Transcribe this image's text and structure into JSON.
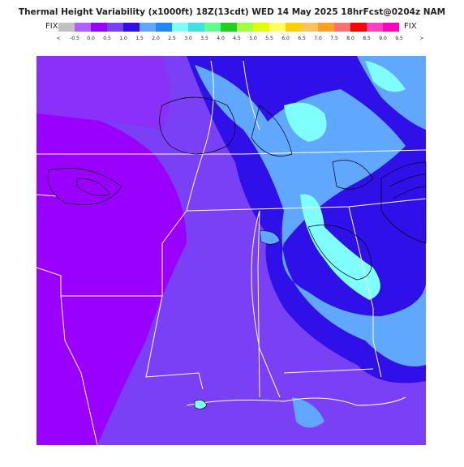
{
  "header": {
    "title": "Thermal Height Variability (x1000ft) 18Z(13cdt) WED 14 May 2025 18hrFcst@0204z NAM",
    "fix_left": "FIX",
    "fix_right": "FIX"
  },
  "legend": {
    "labels": [
      "<",
      "-0.5",
      "0.0",
      "0.5",
      "1.0",
      "1.5",
      "2.0",
      "2.5",
      "3.0",
      "3.5",
      "4.0",
      "4.5",
      "5.0",
      "5.5",
      "6.0",
      "6.5",
      "7.0",
      "7.5",
      "8.0",
      "8.5",
      "9.0",
      "9.5",
      ">"
    ],
    "colors": [
      "#c0c0c0",
      "#b060ff",
      "#9a00ff",
      "#7a40f5",
      "#3010e8",
      "#60a8ff",
      "#1e88ff",
      "#80ffff",
      "#40e0e0",
      "#60ff90",
      "#20d020",
      "#a0ff40",
      "#e0ff00",
      "#ffff60",
      "#ffd000",
      "#ffc060",
      "#ffa020",
      "#ff7070",
      "#ff0000",
      "#ff40c0",
      "#ff00c0"
    ]
  }
}
